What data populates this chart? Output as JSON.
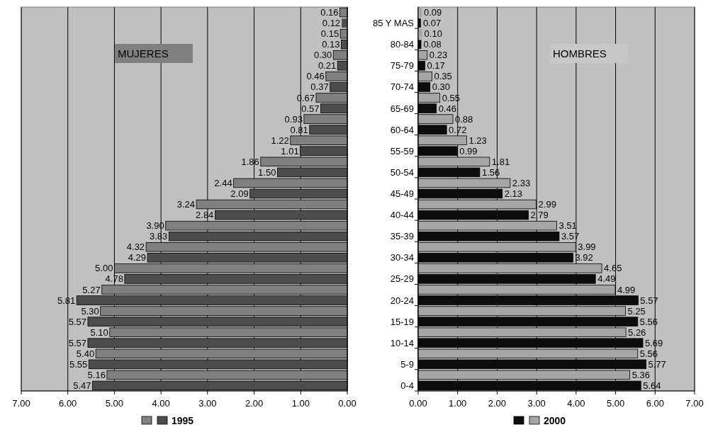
{
  "chart_data": [
    {
      "type": "bar",
      "orientation": "horizontal",
      "title": "MUJERES",
      "categories": [
        null,
        null,
        null,
        null,
        null,
        null,
        null,
        null,
        null,
        null,
        null,
        null,
        null,
        null,
        null,
        null,
        null,
        null
      ],
      "series": [
        {
          "name": "1995",
          "color": "#4d4d4d",
          "values": [
            0.12,
            0.13,
            0.21,
            0.37,
            0.57,
            0.81,
            1.01,
            1.5,
            2.09,
            2.84,
            3.83,
            4.29,
            4.78,
            5.81,
            5.57,
            5.57,
            5.55,
            5.47
          ],
          "value_labels": [
            "0.12",
            "0.13",
            "0.21",
            "0.37",
            "0.57",
            "0.81",
            "1.01",
            "1.50",
            "2.09",
            "2.84",
            "3.83",
            "4.29",
            "4.78",
            "5.81",
            "5.57",
            "5.57",
            "5.55",
            "5.47"
          ]
        },
        {
          "color": "#808080",
          "values": [
            0.16,
            0.15,
            0.3,
            0.46,
            0.67,
            0.93,
            1.22,
            1.86,
            2.44,
            3.24,
            3.9,
            4.32,
            5.0,
            5.27,
            5.3,
            5.1,
            5.4,
            5.16
          ],
          "value_labels": [
            "0.16",
            "0.15",
            "0.30",
            "0.46",
            "0.67",
            "0.93",
            "1.22",
            "1.86",
            "2.44",
            "3.24",
            "3.90",
            "4.32",
            "5.00",
            "5.27",
            "5.30",
            "5.10",
            "5.40",
            "5.16"
          ]
        }
      ],
      "xlim": [
        7,
        0
      ],
      "xticks": [
        {
          "value": 7,
          "label": "7.00"
        },
        {
          "value": 6,
          "label": "6.00"
        },
        {
          "value": 5,
          "label": "5.00"
        },
        {
          "value": 4,
          "label": "4.00"
        },
        {
          "value": 3,
          "label": "3.00"
        },
        {
          "value": 2,
          "label": "2.00"
        },
        {
          "value": 1,
          "label": "1.00"
        },
        {
          "value": 0,
          "label": "0.00"
        }
      ],
      "grid": "x",
      "legend": "bottom",
      "tick_labels": "x"
    },
    {
      "type": "bar",
      "orientation": "horizontal",
      "title": "HOMBRES",
      "categories": [
        "85 Y MAS",
        "80-84",
        "75-79",
        "70-74",
        "65-69",
        "60-64",
        "55-59",
        "50-54",
        "45-49",
        "40-44",
        "35-39",
        "30-34",
        "25-29",
        "20-24",
        "15-19",
        "10-14",
        "5-9",
        "0-4"
      ],
      "series": [
        {
          "color": "#0d0d0d",
          "values": [
            0.07,
            0.08,
            0.17,
            0.3,
            0.46,
            0.72,
            0.99,
            1.56,
            2.13,
            2.79,
            3.57,
            3.92,
            4.49,
            5.57,
            5.56,
            5.69,
            5.77,
            5.64
          ],
          "value_labels": [
            "0.07",
            "0.08",
            "0.17",
            "0.30",
            "0.46",
            "0.72",
            "0.99",
            "1.56",
            "2.13",
            "2.79",
            "3.57",
            "3.92",
            "4.49",
            "5.57",
            "5.56",
            "5.69",
            "5.77",
            "5.64"
          ]
        },
        {
          "name": "2000",
          "color": "#a6a6a6",
          "values": [
            0.09,
            0.1,
            0.23,
            0.35,
            0.55,
            0.88,
            1.23,
            1.81,
            2.33,
            2.99,
            3.51,
            3.99,
            4.65,
            4.99,
            5.25,
            5.26,
            5.56,
            5.36
          ],
          "value_labels": [
            "0.09",
            "0.10",
            "0.23",
            "0.35",
            "0.55",
            "0.88",
            "1.23",
            "1.81",
            "2.33",
            "2.99",
            "3.51",
            "3.99",
            "4.65",
            "4.99",
            "5.25",
            "5.26",
            "5.56",
            "5.36"
          ]
        }
      ],
      "xlim": [
        0,
        7
      ],
      "xticks": [
        {
          "value": 0,
          "label": "0.00"
        },
        {
          "value": 1,
          "label": "1.00"
        },
        {
          "value": 2,
          "label": "2.00"
        },
        {
          "value": 3,
          "label": "3.00"
        },
        {
          "value": 4,
          "label": "4.00"
        },
        {
          "value": 5,
          "label": "5.00"
        },
        {
          "value": 6,
          "label": "6.00"
        },
        {
          "value": 7,
          "label": "7.00"
        }
      ],
      "grid": "x",
      "legend": "bottom"
    }
  ]
}
